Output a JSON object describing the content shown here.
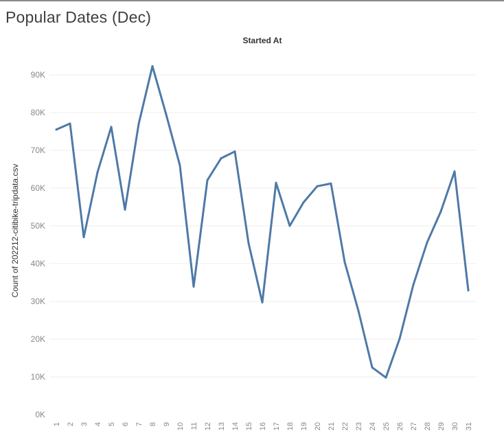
{
  "page": {
    "title": "Popular Dates (Dec)"
  },
  "chart_data": {
    "type": "line",
    "title": "Started At",
    "xlabel": "",
    "ylabel": "Count of 202212-citibike-tripdata.csv",
    "ylim": [
      0,
      95000
    ],
    "y_ticks": [
      0,
      10000,
      20000,
      30000,
      40000,
      50000,
      60000,
      70000,
      80000,
      90000
    ],
    "y_tick_labels": [
      "0K",
      "10K",
      "20K",
      "30K",
      "40K",
      "50K",
      "60K",
      "70K",
      "80K",
      "90K"
    ],
    "grid": "horizontal",
    "categories": [
      "1",
      "2",
      "3",
      "4",
      "5",
      "6",
      "7",
      "8",
      "9",
      "10",
      "11",
      "12",
      "13",
      "14",
      "15",
      "16",
      "17",
      "18",
      "19",
      "20",
      "21",
      "22",
      "23",
      "24",
      "25",
      "26",
      "27",
      "28",
      "29",
      "30",
      "31"
    ],
    "series": [
      {
        "color": "#4e79a7",
        "values": [
          75500,
          77100,
          47000,
          64200,
          76200,
          54300,
          77000,
          92300,
          79500,
          66000,
          33900,
          62100,
          67900,
          69700,
          45400,
          29700,
          61400,
          50000,
          56200,
          60500,
          61200,
          40400,
          27500,
          12500,
          9800,
          20100,
          34400,
          45600,
          53800,
          64400,
          32900
        ]
      }
    ]
  }
}
